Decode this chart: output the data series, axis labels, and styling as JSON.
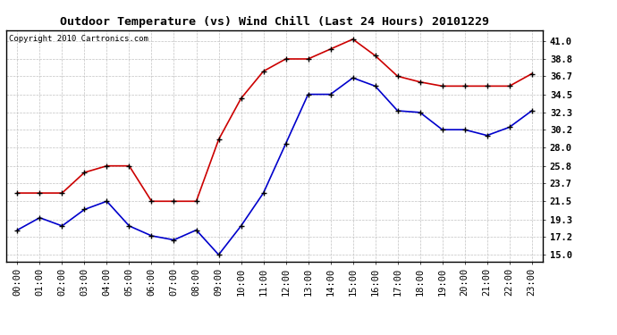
{
  "title": "Outdoor Temperature (vs) Wind Chill (Last 24 Hours) 20101229",
  "copyright": "Copyright 2010 Cartronics.com",
  "hours": [
    "00:00",
    "01:00",
    "02:00",
    "03:00",
    "04:00",
    "05:00",
    "06:00",
    "07:00",
    "08:00",
    "09:00",
    "10:00",
    "11:00",
    "12:00",
    "13:00",
    "14:00",
    "15:00",
    "16:00",
    "17:00",
    "18:00",
    "19:00",
    "20:00",
    "21:00",
    "22:00",
    "23:00"
  ],
  "temp": [
    22.5,
    22.5,
    22.5,
    25.0,
    25.8,
    25.8,
    21.5,
    21.5,
    21.5,
    29.0,
    34.0,
    37.3,
    38.8,
    38.8,
    40.0,
    41.2,
    39.2,
    36.7,
    36.0,
    35.5,
    35.5,
    35.5,
    35.5,
    37.0
  ],
  "wind_chill": [
    18.0,
    19.5,
    18.5,
    20.5,
    21.5,
    18.5,
    17.3,
    16.8,
    18.0,
    15.0,
    18.5,
    22.5,
    28.5,
    34.5,
    34.5,
    36.5,
    35.5,
    32.5,
    32.3,
    30.2,
    30.2,
    29.5,
    30.5,
    32.5
  ],
  "temp_color": "#cc0000",
  "wind_chill_color": "#0000cc",
  "yticks": [
    15.0,
    17.2,
    19.3,
    21.5,
    23.7,
    25.8,
    28.0,
    30.2,
    32.3,
    34.5,
    36.7,
    38.8,
    41.0
  ],
  "ymin": 14.2,
  "ymax": 42.3,
  "bg_color": "#ffffff",
  "plot_bg_color": "#ffffff",
  "grid_color": "#bbbbbb",
  "title_fontsize": 9.5,
  "copyright_fontsize": 6.5,
  "tick_fontsize": 7.5
}
